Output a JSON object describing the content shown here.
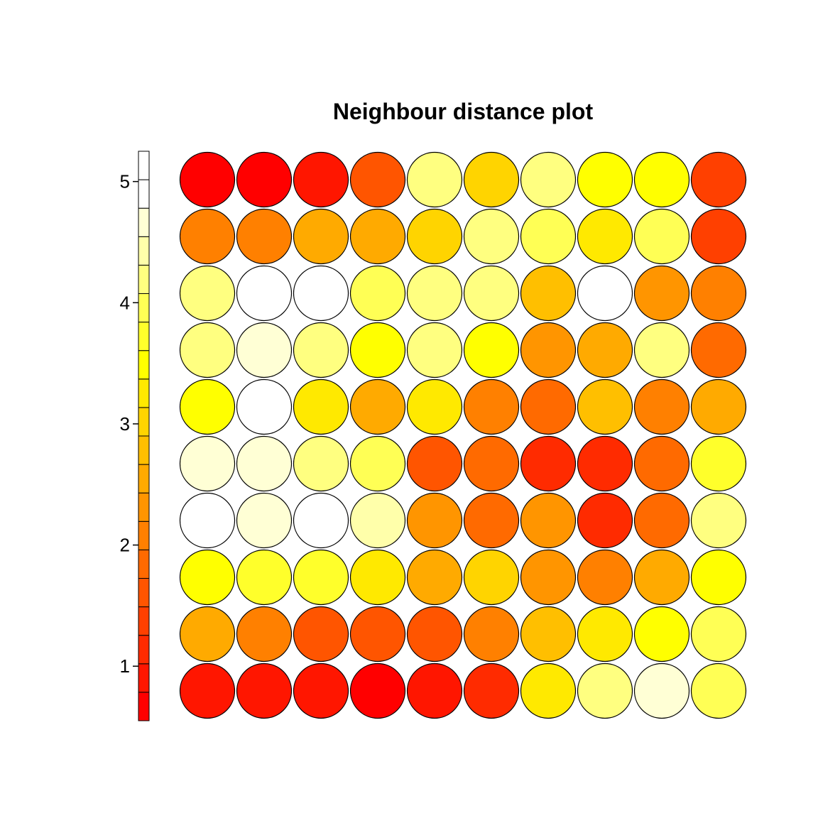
{
  "chart_data": {
    "type": "heatmap",
    "title": "Neighbour distance plot",
    "grid": {
      "cols": 10,
      "rows": 10
    },
    "colorbar": {
      "range": [
        0.55,
        5.25
      ],
      "ticks": [
        1,
        2,
        3,
        4,
        5
      ],
      "tick_labels": [
        "1",
        "2",
        "3",
        "4",
        "5"
      ],
      "colors": [
        "#ff0000",
        "#ff1600",
        "#ff2b00",
        "#ff4000",
        "#ff5500",
        "#ff6a00",
        "#ff8000",
        "#ff9500",
        "#ffaa00",
        "#ffbf00",
        "#ffd400",
        "#ffe900",
        "#ffff00",
        "#ffff2b",
        "#ffff55",
        "#ffff80",
        "#ffffaa",
        "#ffffd5",
        "#ffffff",
        "#ffffff"
      ]
    },
    "values": [
      [
        0.7,
        0.7,
        1.0,
        1.5,
        4.1,
        3.0,
        4.3,
        3.6,
        3.5,
        1.4
      ],
      [
        2.1,
        2.1,
        2.5,
        2.6,
        3.1,
        4.2,
        3.9,
        3.2,
        3.9,
        1.4
      ],
      [
        4.3,
        4.8,
        4.9,
        3.9,
        4.1,
        4.1,
        2.7,
        4.9,
        2.2,
        2.0
      ],
      [
        4.3,
        4.6,
        4.1,
        3.6,
        4.1,
        3.5,
        2.3,
        2.6,
        4.3,
        1.9
      ],
      [
        3.5,
        5.1,
        3.2,
        2.6,
        3.2,
        2.1,
        1.8,
        2.8,
        2.0,
        2.6
      ],
      [
        4.6,
        4.6,
        4.2,
        3.9,
        1.7,
        1.9,
        1.2,
        1.1,
        1.8,
        3.8
      ],
      [
        5.1,
        4.6,
        5.1,
        4.4,
        2.2,
        1.9,
        2.2,
        1.1,
        1.8,
        4.1
      ],
      [
        3.4,
        3.8,
        3.8,
        3.2,
        2.5,
        3.0,
        2.2,
        2.0,
        2.6,
        3.6
      ],
      [
        2.6,
        2.0,
        1.5,
        1.7,
        1.7,
        2.0,
        2.9,
        3.2,
        3.6,
        4.0
      ],
      [
        0.8,
        0.8,
        0.9,
        0.6,
        0.8,
        1.1,
        3.2,
        4.2,
        4.7,
        3.9
      ]
    ]
  }
}
